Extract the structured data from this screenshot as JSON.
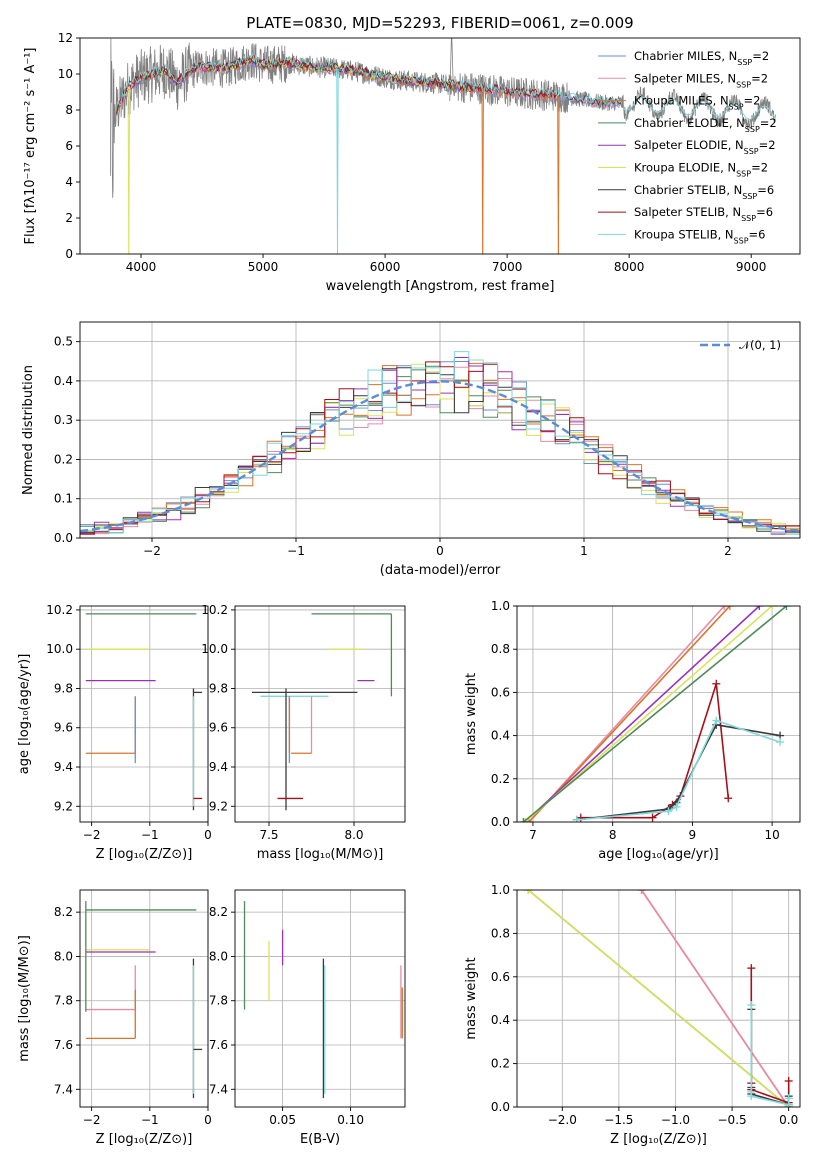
{
  "figure_title": "PLATE=0830, MJD=52293, FIBERID=0061, z=0.009",
  "palette": {
    "chabrier_miles": "#6b8fd6",
    "salpeter_miles": "#e88aa8",
    "kroupa_miles": "#d9742a",
    "chabrier_elodie": "#4e8a5a",
    "salpeter_elodie": "#9b30b8",
    "kroupa_elodie": "#d8e35a",
    "chabrier_stelib": "#3b3b3b",
    "salpeter_stelib": "#a80f18",
    "kroupa_stelib": "#7ed8dc",
    "data_grey": "#808080",
    "normal_curve": "#5b8dd6"
  },
  "chart_data": [
    {
      "id": "spectrum",
      "type": "line",
      "title": "PLATE=0830, MJD=52293, FIBERID=0061, z=0.009",
      "xlabel": "wavelength [Angstrom, rest frame]",
      "ylabel": "Flux [fλ10⁻¹⁷ erg cm⁻² s⁻¹ A⁻¹]",
      "xlim": [
        3500,
        9400
      ],
      "ylim": [
        0,
        12
      ],
      "xticks": [
        4000,
        5000,
        6000,
        7000,
        8000,
        9000
      ],
      "yticks": [
        0,
        2,
        4,
        6,
        8,
        10,
        12
      ],
      "legend_position": "top-right",
      "legend": [
        {
          "label": "Chabrier MILES, N",
          "sub": "SSP",
          "tail": "=2",
          "color_key": "chabrier_miles"
        },
        {
          "label": "Salpeter MILES, N",
          "sub": "SSP",
          "tail": "=2",
          "color_key": "salpeter_miles"
        },
        {
          "label": "Kroupa MILES, N",
          "sub": "SSP",
          "tail": "=2",
          "color_key": "kroupa_miles"
        },
        {
          "label": "Chabrier ELODIE, N",
          "sub": "SSP",
          "tail": "=2",
          "color_key": "chabrier_elodie"
        },
        {
          "label": "Salpeter ELODIE, N",
          "sub": "SSP",
          "tail": "=2",
          "color_key": "salpeter_elodie"
        },
        {
          "label": "Kroupa ELODIE, N",
          "sub": "SSP",
          "tail": "=2",
          "color_key": "kroupa_elodie"
        },
        {
          "label": "Chabrier STELIB, N",
          "sub": "SSP",
          "tail": "=6",
          "color_key": "chabrier_stelib"
        },
        {
          "label": "Salpeter STELIB, N",
          "sub": "SSP",
          "tail": "=6",
          "color_key": "salpeter_stelib"
        },
        {
          "label": "Kroupa STELIB, N",
          "sub": "SSP",
          "tail": "=6",
          "color_key": "kroupa_stelib"
        }
      ],
      "model_continuum": {
        "x": [
          3750,
          3800,
          3900,
          4000,
          4100,
          4200,
          4300,
          4400,
          4500,
          4700,
          4900,
          5000,
          5200,
          5400,
          5600,
          5800,
          6000,
          6200,
          6400,
          6600,
          6800,
          7000,
          7200,
          7400,
          7600,
          7800,
          7950
        ],
        "y": [
          6.5,
          8.0,
          9.3,
          9.8,
          10.0,
          10.2,
          9.5,
          10.2,
          10.4,
          10.3,
          10.8,
          10.5,
          10.6,
          10.4,
          10.3,
          10.1,
          9.8,
          9.6,
          9.5,
          9.3,
          9.2,
          9.0,
          8.9,
          8.8,
          8.6,
          8.4,
          8.4
        ]
      },
      "data_range": {
        "xmin": 3750,
        "xmax": 9200
      },
      "dips": [
        {
          "x": 3900,
          "y": 0.0,
          "color_key": "kroupa_elodie"
        },
        {
          "x": 5610,
          "y": 0.0,
          "color_key": "kroupa_stelib"
        },
        {
          "x": 6800,
          "y": 0.0,
          "color_key": "kroupa_miles"
        },
        {
          "x": 7420,
          "y": 0.0,
          "color_key": "kroupa_miles"
        }
      ]
    },
    {
      "id": "residuals",
      "type": "bar",
      "xlabel": "(data-model)/error",
      "ylabel": "Normed distribution",
      "xlim": [
        -2.5,
        2.5
      ],
      "ylim": [
        0,
        0.55
      ],
      "xticks": [
        -2,
        -1,
        0,
        1,
        2
      ],
      "yticks": [
        0.0,
        0.1,
        0.2,
        0.3,
        0.4,
        0.5
      ],
      "grid": true,
      "legend_position": "top-right",
      "legend_label": "𝒩(0, 1)",
      "bin_width": 0.1,
      "bin_start": -2.5,
      "normal_curve": {
        "mean": 0,
        "sigma": 1
      }
    },
    {
      "id": "age_vs_Z",
      "type": "scatter",
      "xlabel": "Z [log₁₀(Z/Z⊙)]",
      "ylabel": "age  [log₁₀(age/yr)]",
      "xlim": [
        -2.2,
        0
      ],
      "ylim": [
        9.12,
        10.22
      ],
      "xticks": [
        -2,
        -1,
        0
      ],
      "yticks": [
        9.2,
        9.4,
        9.6,
        9.8,
        10.0,
        10.2
      ],
      "grid": true,
      "points": [
        {
          "x": -2.1,
          "y": 10.18,
          "x2": -0.2,
          "color_key": "chabrier_elodie"
        },
        {
          "x": -2.1,
          "y": 10.0,
          "x2": -1.0,
          "color_key": "kroupa_elodie"
        },
        {
          "x": -2.1,
          "y": 9.84,
          "x2": -0.9,
          "color_key": "salpeter_elodie"
        },
        {
          "x": -2.1,
          "y": 9.47,
          "x2": -1.25,
          "color_key": "kroupa_miles"
        },
        {
          "x": -1.25,
          "y": 9.47,
          "y2": 9.76,
          "color_key": "kroupa_miles"
        },
        {
          "x": -1.25,
          "y": 9.42,
          "y2": 9.76,
          "color_key": "chabrier_miles"
        },
        {
          "x": -0.25,
          "y": 9.18,
          "y2": 9.8,
          "color_key": "chabrier_stelib"
        },
        {
          "x": -0.25,
          "y": 9.2,
          "y2": 9.76,
          "color_key": "kroupa_stelib"
        },
        {
          "x": -0.25,
          "y": 9.24,
          "x2": -0.1,
          "color_key": "salpeter_stelib"
        },
        {
          "x": -0.25,
          "y": 9.78,
          "x2": -0.1,
          "color_key": "chabrier_stelib"
        }
      ]
    },
    {
      "id": "age_vs_mass",
      "type": "scatter",
      "xlabel": "mass [log₁₀(M/M⊙)]",
      "xlim": [
        7.3,
        8.3
      ],
      "ylim": [
        9.12,
        10.22
      ],
      "xticks": [
        7.5,
        8.0
      ],
      "yticks": [
        9.2,
        9.4,
        9.6,
        9.8,
        10.0,
        10.2
      ],
      "grid": true,
      "points": [
        {
          "x": 7.75,
          "y": 10.18,
          "x2": 8.22,
          "color_key": "chabrier_elodie"
        },
        {
          "x": 8.22,
          "y": 9.76,
          "y2": 10.18,
          "color_key": "chabrier_elodie"
        },
        {
          "x": 7.85,
          "y": 10.0,
          "x2": 8.05,
          "color_key": "kroupa_elodie"
        },
        {
          "x": 8.02,
          "y": 9.84,
          "x2": 8.12,
          "color_key": "salpeter_elodie"
        },
        {
          "x": 7.4,
          "y": 9.78,
          "x2": 8.02,
          "color_key": "chabrier_stelib"
        },
        {
          "x": 7.45,
          "y": 9.76,
          "x2": 7.85,
          "color_key": "kroupa_stelib"
        },
        {
          "x": 7.6,
          "y": 9.18,
          "y2": 9.8,
          "color_key": "chabrier_stelib"
        },
        {
          "x": 7.75,
          "y": 9.47,
          "y2": 9.76,
          "color_key": "salpeter_miles"
        },
        {
          "x": 7.63,
          "y": 9.47,
          "x2": 7.75,
          "color_key": "kroupa_miles"
        },
        {
          "x": 7.62,
          "y": 9.42,
          "y2": 9.76,
          "color_key": "chabrier_miles"
        },
        {
          "x": 7.55,
          "y": 9.24,
          "x2": 7.7,
          "color_key": "salpeter_stelib"
        },
        {
          "x": 7.62,
          "y": 9.47,
          "y2": 9.76,
          "color_key": "kroupa_miles"
        }
      ]
    },
    {
      "id": "massweight_vs_age",
      "type": "line",
      "xlabel": "age  [log₁₀(age/yr)]",
      "ylabel": "mass weight",
      "xlim": [
        6.8,
        10.35
      ],
      "ylim": [
        0,
        1
      ],
      "xticks": [
        7,
        8,
        9,
        10
      ],
      "yticks": [
        0.0,
        0.2,
        0.4,
        0.6,
        0.8,
        1.0
      ],
      "grid": true,
      "series": [
        {
          "color_key": "salpeter_miles",
          "x": [
            6.95,
            9.4
          ],
          "y": [
            0.0,
            1.0
          ]
        },
        {
          "color_key": "kroupa_miles",
          "x": [
            6.95,
            9.47
          ],
          "y": [
            0.0,
            1.0
          ]
        },
        {
          "color_key": "salpeter_elodie",
          "x": [
            6.9,
            9.84
          ],
          "y": [
            0.0,
            1.0
          ]
        },
        {
          "color_key": "kroupa_elodie",
          "x": [
            6.9,
            10.0
          ],
          "y": [
            0.0,
            1.0
          ]
        },
        {
          "color_key": "chabrier_elodie",
          "x": [
            6.88,
            10.18
          ],
          "y": [
            0.0,
            1.0
          ]
        },
        {
          "color_key": "salpeter_stelib",
          "x": [
            7.6,
            8.5,
            8.75,
            8.85,
            9.3,
            9.45
          ],
          "y": [
            0.02,
            0.02,
            0.08,
            0.12,
            0.64,
            0.11
          ],
          "markers": true
        },
        {
          "color_key": "chabrier_stelib",
          "x": [
            7.55,
            8.7,
            8.8,
            9.3,
            10.1
          ],
          "y": [
            0.01,
            0.06,
            0.09,
            0.45,
            0.4
          ],
          "markers": true
        },
        {
          "color_key": "kroupa_stelib",
          "x": [
            7.55,
            8.7,
            8.8,
            9.3,
            10.1
          ],
          "y": [
            0.01,
            0.05,
            0.07,
            0.47,
            0.37
          ],
          "markers": true
        }
      ]
    },
    {
      "id": "mass_vs_Z",
      "type": "scatter",
      "xlabel": "Z [log₁₀(Z/Z⊙)]",
      "ylabel": "mass [log₁₀(M/M⊙)]",
      "xlim": [
        -2.2,
        0
      ],
      "ylim": [
        7.32,
        8.3
      ],
      "xticks": [
        -2,
        -1,
        0
      ],
      "yticks": [
        7.4,
        7.6,
        7.8,
        8.0,
        8.2
      ],
      "grid": true,
      "points": [
        {
          "x": -2.1,
          "y": 8.21,
          "x2": -0.2,
          "color_key": "chabrier_elodie"
        },
        {
          "x": -2.1,
          "y": 8.03,
          "x2": -1.0,
          "color_key": "kroupa_elodie"
        },
        {
          "x": -2.1,
          "y": 8.02,
          "x2": -0.9,
          "color_key": "salpeter_elodie"
        },
        {
          "x": -2.1,
          "y": 7.76,
          "x2": -1.25,
          "color_key": "salpeter_miles"
        },
        {
          "x": -1.25,
          "y": 7.76,
          "y2": 7.96,
          "color_key": "salpeter_miles"
        },
        {
          "x": -2.1,
          "y": 7.63,
          "x2": -1.25,
          "color_key": "kroupa_miles"
        },
        {
          "x": -1.25,
          "y": 7.63,
          "y2": 7.85,
          "color_key": "kroupa_miles"
        },
        {
          "x": -0.25,
          "y": 7.36,
          "y2": 7.99,
          "color_key": "chabrier_stelib"
        },
        {
          "x": -0.25,
          "y": 7.38,
          "y2": 7.96,
          "color_key": "kroupa_stelib"
        },
        {
          "x": -0.25,
          "y": 7.58,
          "x2": -0.1,
          "color_key": "chabrier_stelib"
        },
        {
          "x": -2.1,
          "y": 7.75,
          "y2": 8.25,
          "color_key": "chabrier_elodie"
        }
      ]
    },
    {
      "id": "mass_vs_ebv",
      "type": "scatter",
      "xlabel": "E(B-V)",
      "xlim": [
        0.015,
        0.14
      ],
      "ylim": [
        7.32,
        8.3
      ],
      "xticks": [
        0.05,
        0.1
      ],
      "yticks": [
        7.4,
        7.6,
        7.8,
        8.0,
        8.2
      ],
      "grid": true,
      "points": [
        {
          "x": 0.022,
          "y": 7.76,
          "y2": 8.25,
          "color_key": "chabrier_elodie"
        },
        {
          "x": 0.04,
          "y": 7.8,
          "y2": 8.07,
          "color_key": "kroupa_elodie"
        },
        {
          "x": 0.05,
          "y": 7.96,
          "y2": 8.12,
          "color_key": "salpeter_elodie"
        },
        {
          "x": 0.08,
          "y": 7.36,
          "y2": 7.99,
          "color_key": "chabrier_stelib"
        },
        {
          "x": 0.081,
          "y": 7.38,
          "y2": 7.96,
          "color_key": "kroupa_stelib"
        },
        {
          "x": 0.137,
          "y": 7.63,
          "y2": 7.96,
          "color_key": "salpeter_miles"
        },
        {
          "x": 0.138,
          "y": 7.63,
          "y2": 7.86,
          "color_key": "kroupa_miles"
        }
      ]
    },
    {
      "id": "massweight_vs_Z",
      "type": "line",
      "xlabel": "Z [log₁₀(Z/Z⊙)]",
      "ylabel": "mass weight",
      "xlim": [
        -2.4,
        0.1
      ],
      "ylim": [
        0,
        1
      ],
      "xticks": [
        -2.0,
        -1.5,
        -1.0,
        -0.5,
        0.0
      ],
      "yticks": [
        0.0,
        0.2,
        0.4,
        0.6,
        0.8,
        1.0
      ],
      "grid": true,
      "series": [
        {
          "color_key": "kroupa_miles",
          "x": [
            -1.3,
            0.0
          ],
          "y": [
            1.0,
            0.0
          ]
        },
        {
          "color_key": "salpeter_miles",
          "x": [
            -1.3,
            0.0
          ],
          "y": [
            1.0,
            0.0
          ]
        },
        {
          "color_key": "chabrier_elodie",
          "x": [
            -2.3,
            0.0
          ],
          "y": [
            1.0,
            0.0
          ]
        },
        {
          "color_key": "kroupa_elodie",
          "x": [
            -2.3,
            0.0
          ],
          "y": [
            1.0,
            0.0
          ]
        },
        {
          "color_key": "salpeter_stelib",
          "x": [
            -0.33,
            -0.33,
            -0.33,
            0.0,
            0.0
          ],
          "y": [
            0.64,
            0.11,
            0.08,
            0.02,
            0.12
          ],
          "markers": true
        },
        {
          "color_key": "chabrier_stelib",
          "x": [
            -0.33,
            -0.33,
            -0.33,
            0.0,
            0.0
          ],
          "y": [
            0.45,
            0.09,
            0.06,
            0.01,
            0.05
          ],
          "markers": true
        },
        {
          "color_key": "kroupa_stelib",
          "x": [
            -0.33,
            -0.33,
            -0.33,
            0.0,
            0.0
          ],
          "y": [
            0.47,
            0.07,
            0.05,
            0.01,
            0.04
          ],
          "markers": true
        }
      ]
    }
  ]
}
